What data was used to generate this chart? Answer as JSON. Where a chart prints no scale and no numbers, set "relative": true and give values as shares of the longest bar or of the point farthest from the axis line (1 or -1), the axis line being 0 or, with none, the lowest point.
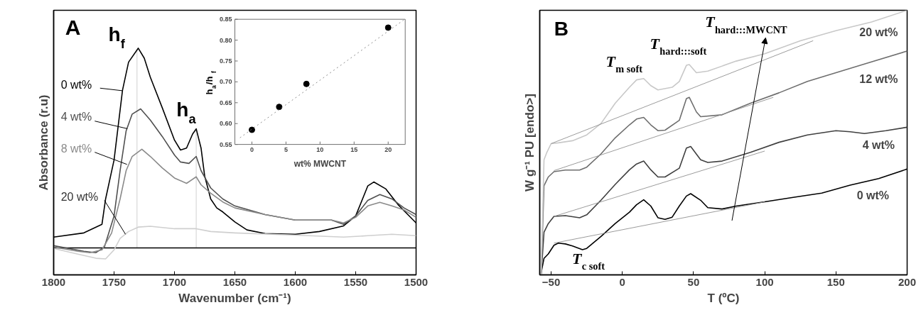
{
  "chart_data": [
    {
      "type": "line",
      "relative": true,
      "xlabel": "Wavenumber (cm⁻¹)",
      "ylabel": "Absorbance (r.u)",
      "xlim": [
        1800,
        1500
      ],
      "xticks": [
        1800,
        1750,
        1700,
        1650,
        1600,
        1550,
        1500
      ],
      "annotations": [
        "A",
        "h$_{f}$",
        "h$_{a}$"
      ],
      "ref_lines": [
        {
          "axis": "x",
          "value": 1731,
          "color": "#d0d0d0"
        },
        {
          "axis": "x",
          "value": 1682,
          "color": "#d0d0d0"
        },
        {
          "axis": "y",
          "value": 0,
          "color": "#000000"
        }
      ],
      "series": [
        {
          "name": "0 wt%",
          "color": "#000000",
          "x": [
            1800,
            1775,
            1760,
            1757,
            1750,
            1743,
            1738,
            1730,
            1725,
            1720,
            1710,
            1700,
            1695,
            1690,
            1685,
            1682,
            1678,
            1675,
            1670,
            1665,
            1660,
            1650,
            1640,
            1625,
            1600,
            1580,
            1560,
            1550,
            1540,
            1535,
            1525,
            1515,
            1500
          ],
          "values": [
            0.054,
            0.075,
            0.118,
            0.245,
            0.44,
            0.79,
            0.93,
            1.0,
            0.95,
            0.855,
            0.7,
            0.54,
            0.49,
            0.5,
            0.57,
            0.596,
            0.5,
            0.36,
            0.245,
            0.2,
            0.18,
            0.13,
            0.09,
            0.072,
            0.068,
            0.082,
            0.11,
            0.16,
            0.31,
            0.33,
            0.295,
            0.217,
            0.125
          ]
        },
        {
          "name": "4 wt%",
          "color": "#505050",
          "x": [
            1800,
            1775,
            1765,
            1758,
            1750,
            1745,
            1740,
            1735,
            1728,
            1720,
            1710,
            1700,
            1695,
            1688,
            1682,
            1678,
            1670,
            1660,
            1650,
            1625,
            1600,
            1570,
            1560,
            1550,
            1540,
            1530,
            1520,
            1510,
            1500
          ],
          "values": [
            0.011,
            -0.017,
            -0.024,
            0.004,
            0.16,
            0.387,
            0.586,
            0.67,
            0.696,
            0.64,
            0.557,
            0.465,
            0.43,
            0.423,
            0.458,
            0.387,
            0.3,
            0.245,
            0.21,
            0.167,
            0.139,
            0.139,
            0.118,
            0.16,
            0.238,
            0.267,
            0.245,
            0.2,
            0.167
          ]
        },
        {
          "name": "8 wt%",
          "color": "#8a8a8a",
          "x": [
            1800,
            1780,
            1770,
            1760,
            1752,
            1745,
            1740,
            1735,
            1727,
            1720,
            1710,
            1700,
            1690,
            1682,
            1678,
            1670,
            1660,
            1650,
            1625,
            1600,
            1570,
            1560,
            1550,
            1540,
            1530,
            1520,
            1510,
            1500
          ],
          "values": [
            0.004,
            -0.017,
            -0.024,
            -0.01,
            0.075,
            0.245,
            0.387,
            0.458,
            0.494,
            0.458,
            0.4,
            0.35,
            0.323,
            0.356,
            0.316,
            0.274,
            0.23,
            0.2,
            0.167,
            0.139,
            0.139,
            0.125,
            0.153,
            0.21,
            0.228,
            0.21,
            0.19,
            0.153
          ]
        },
        {
          "name": "20 wt%",
          "color": "#cfcfcf",
          "x": [
            1800,
            1780,
            1765,
            1757,
            1750,
            1745,
            1738,
            1730,
            1720,
            1700,
            1682,
            1670,
            1650,
            1600,
            1560,
            1540,
            1520,
            1500
          ],
          "values": [
            -0.003,
            -0.031,
            -0.052,
            -0.055,
            -0.01,
            0.047,
            0.082,
            0.104,
            0.108,
            0.096,
            0.096,
            0.082,
            0.075,
            0.064,
            0.054,
            0.061,
            0.068,
            0.061
          ]
        }
      ]
    },
    {
      "type": "scatter",
      "xlabel": "wt% MWCNT",
      "ylabel": "h$_{a}$/h$_{f}$",
      "xlim": [
        -2.5,
        22.5
      ],
      "ylim": [
        0.55,
        0.85
      ],
      "xticks": [
        0,
        5,
        10,
        15,
        20
      ],
      "yticks": [
        0.55,
        {
          "value": 0.6,
          "label": "0.60"
        },
        0.65,
        {
          "value": 0.7,
          "label": "0.70"
        },
        0.75,
        {
          "value": 0.8,
          "label": "0.80"
        },
        0.85
      ],
      "series": [
        {
          "type": "scatter",
          "marker": "circle",
          "color": "#000000",
          "x": [
            0,
            4,
            8,
            20
          ],
          "values": [
            0.585,
            0.64,
            0.695,
            0.83
          ]
        },
        {
          "type": "line",
          "color": "#808080",
          "line_style": "dotted",
          "x": [
            -1.75,
            22.25
          ],
          "values": [
            0.566,
            0.848
          ]
        }
      ]
    },
    {
      "type": "line",
      "relative": true,
      "xlabel": "T (ºC)",
      "ylabel": "W g⁻¹ PU [endo>]",
      "xlim": [
        -58,
        200
      ],
      "xticks": [
        -50,
        0,
        50,
        100,
        150,
        200
      ],
      "annotations": [
        "B",
        "T$_{m soft}$",
        "T$_{hard:::soft}$",
        "T$_{hard:::MWCNT}$",
        "T$_{c soft}$"
      ],
      "series": [
        {
          "name": "0 wt%",
          "color": "#000000",
          "x": [
            -57,
            -55,
            -52,
            -48,
            -45,
            -40,
            -35,
            -28,
            -25,
            -15,
            -5,
            5,
            10,
            15,
            20,
            25,
            30,
            35,
            40,
            45,
            48,
            55,
            60,
            70,
            80,
            100,
            120,
            140,
            160,
            180,
            200
          ],
          "values": [
            0.008,
            0.0625,
            0.079,
            0.112,
            0.12,
            0.117,
            0.109,
            0.095,
            0.1,
            0.145,
            0.194,
            0.237,
            0.265,
            0.284,
            0.26,
            0.216,
            0.21,
            0.218,
            0.26,
            0.298,
            0.307,
            0.282,
            0.254,
            0.249,
            0.26,
            0.276,
            0.293,
            0.309,
            0.339,
            0.364,
            0.4
          ]
        },
        {
          "name": "4 wt%",
          "color": "#404040",
          "x": [
            -57,
            -55,
            -52,
            -48,
            -40,
            -30,
            -25,
            -15,
            -5,
            5,
            10,
            15,
            20,
            25,
            30,
            40,
            45,
            48,
            55,
            60,
            70,
            90,
            110,
            130,
            150,
            160,
            170,
            185,
            200
          ],
          "values": [
            0.002,
            0.161,
            0.194,
            0.221,
            0.224,
            0.216,
            0.227,
            0.282,
            0.342,
            0.397,
            0.419,
            0.43,
            0.397,
            0.37,
            0.37,
            0.403,
            0.479,
            0.485,
            0.435,
            0.425,
            0.43,
            0.463,
            0.501,
            0.529,
            0.545,
            0.541,
            0.534,
            0.545,
            0.558
          ]
        },
        {
          "name": "12 wt%",
          "color": "#6e6e6e",
          "x": [
            -57,
            -55,
            -52,
            -48,
            -40,
            -30,
            -25,
            -15,
            -5,
            5,
            10,
            15,
            20,
            25,
            30,
            40,
            45,
            47,
            52,
            55,
            70,
            90,
            110,
            130,
            150,
            170,
            200
          ],
          "values": [
            0.002,
            0.337,
            0.37,
            0.39,
            0.396,
            0.396,
            0.407,
            0.457,
            0.518,
            0.567,
            0.589,
            0.595,
            0.567,
            0.545,
            0.547,
            0.584,
            0.666,
            0.671,
            0.616,
            0.598,
            0.605,
            0.649,
            0.688,
            0.731,
            0.764,
            0.797,
            0.846
          ]
        },
        {
          "name": "20 wt%",
          "color": "#c8c8c8",
          "x": [
            -57,
            -55,
            -53,
            -50,
            -45,
            -35,
            -25,
            -15,
            -5,
            5,
            10,
            15,
            20,
            25,
            35,
            40,
            45,
            47,
            52,
            60,
            80,
            100,
            125,
            150,
            175,
            200
          ],
          "values": [
            0.002,
            0.435,
            0.463,
            0.496,
            0.499,
            0.507,
            0.529,
            0.572,
            0.649,
            0.709,
            0.737,
            0.742,
            0.715,
            0.699,
            0.709,
            0.731,
            0.792,
            0.795,
            0.764,
            0.77,
            0.808,
            0.836,
            0.885,
            0.923,
            0.956,
            1.0
          ]
        },
        {
          "color": "#909090",
          "x": [
            -48,
            100
          ],
          "values": [
            0.12,
            0.276
          ]
        },
        {
          "color": "#909090",
          "x": [
            -48,
            100
          ],
          "values": [
            0.221,
            0.468
          ]
        },
        {
          "color": "#909090",
          "x": [
            -48,
            106
          ],
          "values": [
            0.394,
            0.671
          ]
        },
        {
          "color": "#909090",
          "x": [
            -50,
            134
          ],
          "values": [
            0.496,
            0.885
          ]
        }
      ]
    }
  ]
}
